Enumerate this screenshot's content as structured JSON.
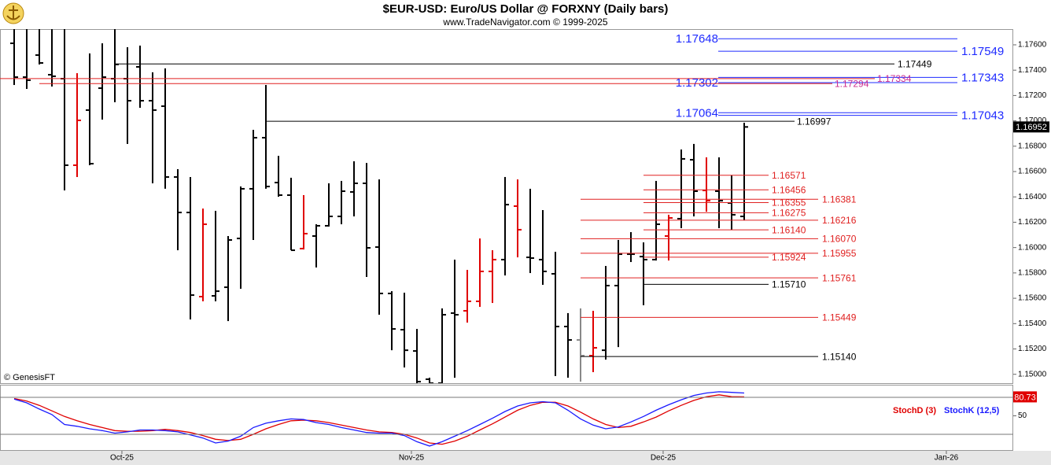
{
  "chart_data": [
    {
      "type": "ohlc",
      "title": "$EUR-USD:  Euro/US Dollar @ FORXNY  (Daily bars)",
      "subtitle": "www.TradeNavigator.com © 1999-2025",
      "annotation": "© GenesisFT",
      "xlim": [
        -1.125,
        79.375
      ],
      "ylim": [
        1.1493,
        1.17724
      ],
      "yticks": [
        {
          "value": 1.15,
          "label": "1.15000"
        },
        {
          "value": 1.152,
          "label": "1.15200"
        },
        {
          "value": 1.154,
          "label": "1.15400"
        },
        {
          "value": 1.156,
          "label": "1.15600"
        },
        {
          "value": 1.158,
          "label": "1.15800"
        },
        {
          "value": 1.16,
          "label": "1.16000"
        },
        {
          "value": 1.162,
          "label": "1.16200"
        },
        {
          "value": 1.164,
          "label": "1.16400"
        },
        {
          "value": 1.166,
          "label": "1.16600"
        },
        {
          "value": 1.168,
          "label": "1.16800"
        },
        {
          "value": 1.17,
          "label": "1.17000"
        },
        {
          "value": 1.172,
          "label": "1.17200"
        },
        {
          "value": 1.174,
          "label": "1.17400"
        },
        {
          "value": 1.176,
          "label": "1.17600"
        }
      ],
      "open": [
        1.17612,
        1.17345,
        1.17519,
        1.17364,
        1.17333,
        1.1665,
        1.17085,
        1.17258,
        1.17333,
        1.17333,
        1.17426,
        1.17159,
        1.17116,
        1.16557,
        1.16277,
        1.15613,
        1.15619,
        1.15687,
        1.16072,
        1.16464,
        1.16867,
        1.16513,
        1.16414,
        1.15992,
        1.16091,
        1.16172,
        1.16246,
        1.16439,
        1.16507,
        1.16004,
        1.15638,
        1.15352,
        1.15184,
        1.14961,
        1.1493,
        1.15483,
        1.15501,
        1.15576,
        1.15812,
        1.15905,
        1.16327,
        1.15923,
        1.15905,
        1.15793,
        1.15377,
        1.15271,
        1.15147,
        1.1519,
        1.157,
        1.15948,
        1.15929,
        1.15905,
        1.16091,
        1.16228,
        1.16693,
        1.16451,
        1.16445,
        1.16352,
        1.16246
      ],
      "high": [
        1.17724,
        1.17724,
        1.17724,
        1.17724,
        1.17724,
        1.17376,
        1.17532,
        1.17612,
        1.17724,
        1.17581,
        1.17594,
        1.17383,
        1.17414,
        1.16619,
        1.16557,
        1.16308,
        1.1629,
        1.16091,
        1.16482,
        1.16929,
        1.17283,
        1.16724,
        1.16551,
        1.16414,
        1.16184,
        1.16507,
        1.16526,
        1.16681,
        1.16668,
        1.16538,
        1.15656,
        1.15644,
        1.15358,
        1.14973,
        1.1552,
        1.15905,
        1.15824,
        1.16072,
        1.15979,
        1.16557,
        1.16538,
        1.16464,
        1.16296,
        1.15967,
        1.15483,
        1.1552,
        1.15501,
        1.15855,
        1.1606,
        1.16122,
        1.16041,
        1.16526,
        1.16259,
        1.16774,
        1.16818,
        1.16712,
        1.16712,
        1.16569,
        1.16985
      ],
      "low": [
        1.17283,
        1.17252,
        1.17445,
        1.17271,
        1.16451,
        1.16557,
        1.1665,
        1.1701,
        1.17147,
        1.16818,
        1.17103,
        1.16507,
        1.16464,
        1.15979,
        1.15433,
        1.15576,
        1.15576,
        1.1542,
        1.15675,
        1.1606,
        1.16464,
        1.16401,
        1.15979,
        1.15985,
        1.15843,
        1.16166,
        1.16184,
        1.16246,
        1.15768,
        1.1547,
        1.1519,
        1.15054,
        1.1493,
        1.1493,
        1.1493,
        1.14973,
        1.15408,
        1.15532,
        1.15563,
        1.1578,
        1.15923,
        1.15799,
        1.15706,
        1.14986,
        1.14973,
        1.14942,
        1.15017,
        1.15116,
        1.15215,
        1.15886,
        1.15545,
        1.15898,
        1.15898,
        1.16153,
        1.16246,
        1.16283,
        1.16153,
        1.16141,
        1.16215
      ],
      "close": [
        1.17345,
        1.17321,
        1.17457,
        1.17352,
        1.1665,
        1.17004,
        1.16662,
        1.17345,
        1.17445,
        1.17159,
        1.17159,
        1.17085,
        1.16557,
        1.16277,
        1.15625,
        1.16184,
        1.15656,
        1.1606,
        1.16464,
        1.16867,
        1.16482,
        1.16414,
        1.15979,
        1.1611,
        1.16172,
        1.16246,
        1.16445,
        1.16507,
        1.15998,
        1.15638,
        1.15358,
        1.1519,
        1.14942,
        1.1493,
        1.1547,
        1.1547,
        1.15576,
        1.15812,
        1.15905,
        1.16339,
        1.16141,
        1.15917,
        1.15812,
        1.15377,
        1.15271,
        1.15147,
        1.15209,
        1.157,
        1.15948,
        1.15948,
        1.15905,
        1.16184,
        1.16234,
        1.167,
        1.16445,
        1.1637,
        1.1637,
        1.16259,
        1.16952
      ],
      "bar_colors": [
        "#000000",
        "#000000",
        "#000000",
        "#000000",
        "#000000",
        "#e00000",
        "#000000",
        "#000000",
        "#000000",
        "#000000",
        "#000000",
        "#000000",
        "#000000",
        "#000000",
        "#000000",
        "#e00000",
        "#000000",
        "#000000",
        "#000000",
        "#000000",
        "#000000",
        "#000000",
        "#000000",
        "#e00000",
        "#000000",
        "#000000",
        "#000000",
        "#000000",
        "#000000",
        "#000000",
        "#000000",
        "#000000",
        "#000000",
        "#000000",
        "#000000",
        "#000000",
        "#e00000",
        "#e00000",
        "#e00000",
        "#000000",
        "#e00000",
        "#000000",
        "#000000",
        "#000000",
        "#000000",
        "#888888",
        "#e00000",
        "#000000",
        "#000000",
        "#000000",
        "#000000",
        "#000000",
        "#e00000",
        "#000000",
        "#000000",
        "#e00000",
        "#000000",
        "#000000",
        "#000000"
      ],
      "levels": [
        {
          "value": 1.17648,
          "color": "#1f2bff"
        },
        {
          "value": 1.17549,
          "color": "#1f2bff"
        },
        {
          "value": 1.17449,
          "color": "#000000"
        },
        {
          "value": 1.17343,
          "color": "#1f2bff"
        },
        {
          "value": 1.17334,
          "color": "#cc2f8f"
        },
        {
          "value": 1.17302,
          "color": "#1f2bff"
        },
        {
          "value": 1.17294,
          "color": "#cc2f8f"
        },
        {
          "value": 1.17064,
          "color": "#1f2bff"
        },
        {
          "value": 1.17043,
          "color": "#1f2bff"
        },
        {
          "value": 1.16997,
          "color": "#000000"
        },
        {
          "value": 1.16571,
          "color": "#e02020"
        },
        {
          "value": 1.16456,
          "color": "#e02020"
        },
        {
          "value": 1.16381,
          "color": "#e02020"
        },
        {
          "value": 1.16355,
          "color": "#e02020"
        },
        {
          "value": 1.16275,
          "color": "#e02020"
        },
        {
          "value": 1.16216,
          "color": "#e02020"
        },
        {
          "value": 1.1614,
          "label": "1.16140",
          "color": "#e02020"
        },
        {
          "value": 1.1607,
          "label": "1.16070",
          "color": "#e02020"
        },
        {
          "value": 1.15955,
          "color": "#e02020"
        },
        {
          "value": 1.15924,
          "color": "#e02020"
        },
        {
          "value": 1.15761,
          "color": "#e02020"
        },
        {
          "value": 1.1571,
          "label": "1.15710",
          "color": "#000000"
        },
        {
          "value": 1.15449,
          "color": "#e02020"
        },
        {
          "value": 1.1514,
          "label": "1.15140",
          "color": "#000000"
        }
      ]
    },
    {
      "type": "line",
      "xlim": [
        -1.125,
        79.375
      ],
      "xticks": [
        {
          "value": 8.56,
          "label": "Oct-25"
        },
        {
          "value": 31.56,
          "label": "Nov-25"
        },
        {
          "value": 51.56,
          "label": "Dec-25"
        },
        {
          "value": 74.06,
          "label": "Jan-26"
        }
      ],
      "ylim": [
        0,
        100
      ],
      "yticks": [
        50
      ],
      "hlines": [
        20,
        80
      ],
      "series": [
        {
          "name": "StochD (3)",
          "color": "#e00000",
          "values": [
            78,
            74,
            67,
            58,
            49,
            42,
            36,
            31,
            26,
            25,
            25,
            26,
            28,
            26,
            23,
            18,
            12,
            10,
            12,
            20,
            29,
            36,
            42,
            43,
            42,
            39,
            35,
            31,
            27,
            24,
            23,
            20,
            14,
            6,
            4,
            9,
            17,
            27,
            37,
            48,
            59,
            67,
            72,
            72,
            66,
            56,
            45,
            36,
            31,
            33,
            40,
            48,
            58,
            67,
            75,
            81,
            84,
            81,
            80.73
          ]
        },
        {
          "name": "StochK (12,5)",
          "color": "#1a1aff",
          "values": [
            77,
            71,
            61,
            52,
            36,
            33,
            29,
            26,
            22,
            24,
            27,
            27,
            26,
            24,
            19,
            14,
            6,
            9,
            17,
            31,
            38,
            42,
            45,
            44,
            39,
            36,
            31,
            27,
            23,
            22,
            22,
            18,
            8,
            1,
            8,
            17,
            26,
            36,
            46,
            57,
            66,
            71,
            73,
            71,
            59,
            45,
            35,
            29,
            32,
            40,
            49,
            59,
            68,
            76,
            83,
            87,
            89,
            88,
            87
          ]
        }
      ]
    }
  ]
}
